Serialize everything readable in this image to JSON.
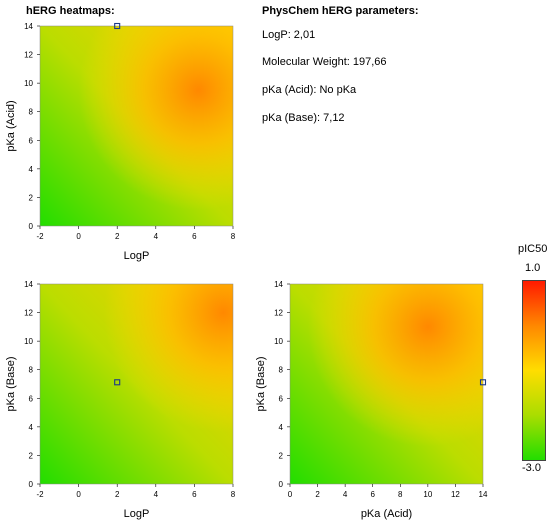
{
  "header": {
    "heatmaps_title": "hERG heatmaps:",
    "physchem_title": "PhysChem hERG parameters:"
  },
  "params": {
    "logp": "LogP: 2,01",
    "mw": "Molecular Weight: 197,66",
    "pka_acid": "pKa (Acid): No pKa",
    "pka_base": "pKa (Base): 7,12"
  },
  "legend": {
    "title": "pIC50",
    "max_label": "1.0",
    "min_label": "-3.0",
    "colors": [
      "#ff1a00",
      "#ff8800",
      "#ffdd00",
      "#aadd00",
      "#22dd00"
    ]
  },
  "chart_data": [
    {
      "type": "heatmap",
      "id": "logp_vs_pka_acid",
      "xlabel": "LogP",
      "ylabel": "pKa (Acid)",
      "xlim": [
        -2,
        8
      ],
      "ylim": [
        0,
        14
      ],
      "xticks": [
        "-2",
        "0",
        "2",
        "4",
        "6",
        "8"
      ],
      "yticks": [
        "0",
        "2",
        "4",
        "6",
        "8",
        "10",
        "12",
        "14"
      ],
      "hotspot": [
        6.2,
        9.5
      ],
      "marker": [
        2,
        14
      ]
    },
    {
      "type": "heatmap",
      "id": "logp_vs_pka_base",
      "xlabel": "LogP",
      "ylabel": "pKa (Base)",
      "xlim": [
        -2,
        8
      ],
      "ylim": [
        0,
        14
      ],
      "xticks": [
        "-2",
        "0",
        "2",
        "4",
        "6",
        "8"
      ],
      "yticks": [
        "0",
        "2",
        "4",
        "6",
        "8",
        "10",
        "12",
        "14"
      ],
      "hotspot": [
        7.5,
        12
      ],
      "marker": [
        2,
        7.12
      ]
    },
    {
      "type": "heatmap",
      "id": "pka_acid_vs_pka_base",
      "xlabel": "pKa (Acid)",
      "ylabel": "pKa (Base)",
      "xlim": [
        0,
        14
      ],
      "ylim": [
        0,
        14
      ],
      "xticks": [
        "0",
        "2",
        "4",
        "6",
        "8",
        "10",
        "12",
        "14"
      ],
      "yticks": [
        "0",
        "2",
        "4",
        "6",
        "8",
        "10",
        "12",
        "14"
      ],
      "hotspot": [
        10,
        11
      ],
      "marker": [
        14,
        7.12
      ]
    }
  ]
}
